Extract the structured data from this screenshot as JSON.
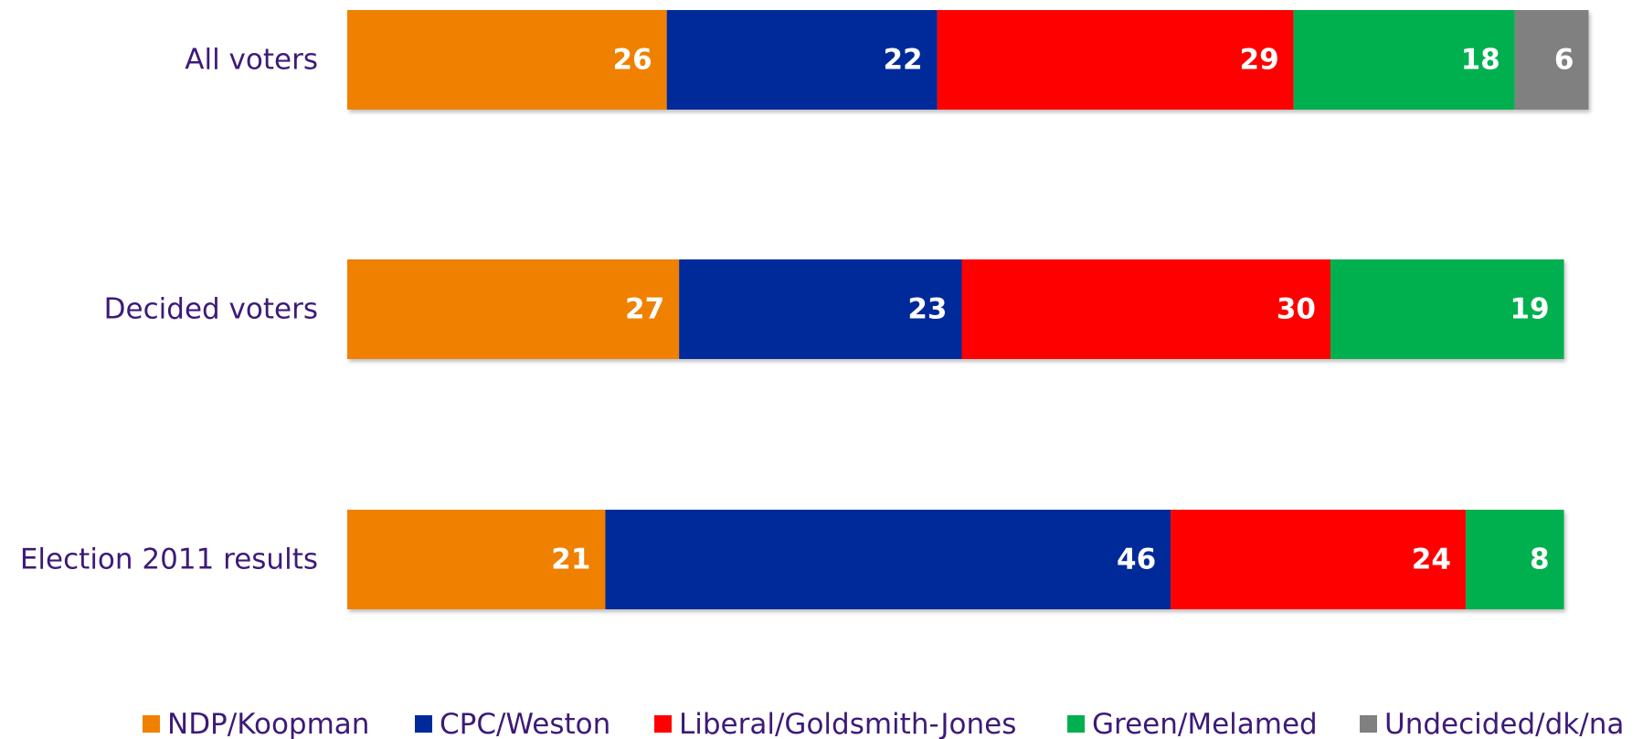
{
  "chart_data": {
    "type": "bar",
    "orientation": "horizontal",
    "stacked": true,
    "categories": [
      "All voters",
      "Decided voters",
      "Election 2011 results"
    ],
    "series": [
      {
        "name": "NDP/Koopman",
        "color": "#f08000",
        "values": [
          26,
          27,
          21
        ]
      },
      {
        "name": "CPC/Weston",
        "color": "#002a9a",
        "values": [
          22,
          23,
          46
        ]
      },
      {
        "name": "Liberal/Goldsmith-Jones",
        "color": "#ff0000",
        "values": [
          29,
          30,
          24
        ]
      },
      {
        "name": "Green/Melamed",
        "color": "#00b050",
        "values": [
          18,
          19,
          8
        ]
      },
      {
        "name": "Undecided/dk/na",
        "color": "#808080",
        "values": [
          6,
          null,
          null
        ]
      }
    ],
    "legend_position": "bottom",
    "grid": false,
    "axes_visible": false
  }
}
